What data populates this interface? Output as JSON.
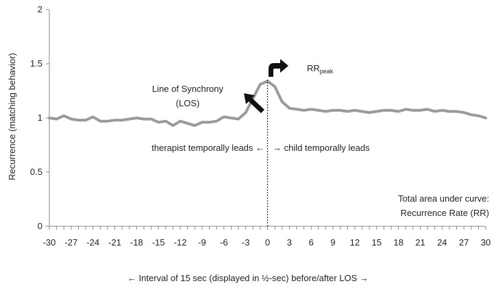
{
  "chart_data": {
    "type": "line",
    "title": "",
    "xlabel": "← Interval of 15 sec (displayed in ½-sec) before/after LOS →",
    "ylabel": "Recurrence (matching behavior)",
    "xlim": [
      -30,
      30
    ],
    "ylim": [
      0,
      2
    ],
    "x_ticks": [
      "-30",
      "-27",
      "-24",
      "-21",
      "-18",
      "-15",
      "-12",
      "-9",
      "-6",
      "-3",
      "0",
      "3",
      "6",
      "9",
      "12",
      "15",
      "18",
      "21",
      "24",
      "27",
      "30"
    ],
    "y_ticks": [
      "0",
      "0.5",
      "1",
      "1.5",
      "2"
    ],
    "grid": false,
    "legend": "none",
    "series_color": "#9a9a9a",
    "series": [
      {
        "x": [
          -30,
          -29,
          -28,
          -27,
          -26,
          -25,
          -24,
          -23,
          -22,
          -21,
          -20,
          -19,
          -18,
          -17,
          -16,
          -15,
          -14,
          -13,
          -12,
          -11,
          -10,
          -9,
          -8,
          -7,
          -6,
          -5,
          -4,
          -3,
          -2,
          -1,
          0,
          1,
          2,
          3,
          4,
          5,
          6,
          7,
          8,
          9,
          10,
          11,
          12,
          13,
          14,
          15,
          16,
          17,
          18,
          19,
          20,
          21,
          22,
          23,
          24,
          25,
          26,
          27,
          28,
          29,
          30
        ],
        "values": [
          1.0,
          0.99,
          1.02,
          0.99,
          0.98,
          0.98,
          1.01,
          0.97,
          0.97,
          0.98,
          0.98,
          0.99,
          1.0,
          0.99,
          0.99,
          0.96,
          0.97,
          0.93,
          0.97,
          0.95,
          0.93,
          0.96,
          0.96,
          0.97,
          1.01,
          1.0,
          0.99,
          1.05,
          1.18,
          1.31,
          1.34,
          1.29,
          1.15,
          1.09,
          1.08,
          1.07,
          1.08,
          1.07,
          1.06,
          1.07,
          1.07,
          1.06,
          1.07,
          1.06,
          1.05,
          1.06,
          1.07,
          1.07,
          1.06,
          1.08,
          1.07,
          1.07,
          1.08,
          1.06,
          1.07,
          1.06,
          1.06,
          1.05,
          1.03,
          1.02,
          1.0
        ]
      }
    ],
    "annotations": {
      "rr_peak_main": "RR",
      "rr_peak_sub": "peak",
      "los_line1": "Line of Synchrony",
      "los_line2": "(LOS)",
      "lead_left": "therapist temporally leads ←",
      "lead_right": "→ child temporally leads",
      "area_line1": "Total area under curve:",
      "area_line2": "Recurrence Rate (RR)"
    }
  }
}
